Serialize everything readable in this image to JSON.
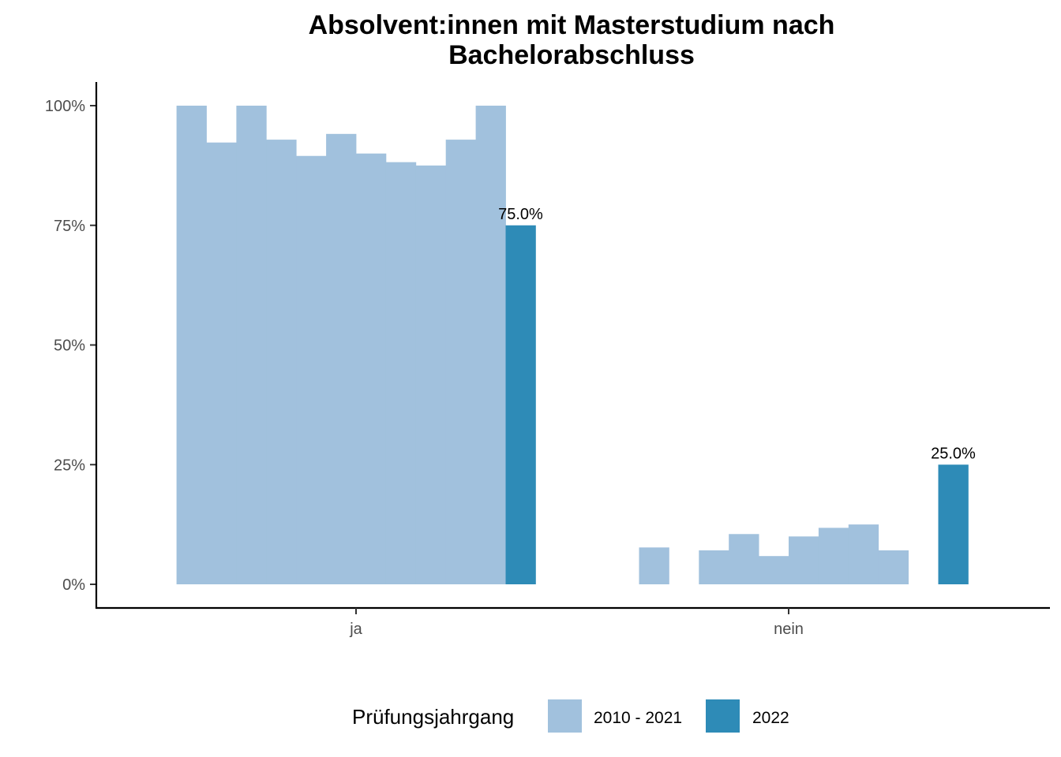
{
  "chart_data": {
    "type": "bar",
    "title_lines": [
      "Absolvent:innen mit Masterstudium nach",
      "Bachelorabschluss"
    ],
    "xlabel": "",
    "ylabel": "",
    "categories": [
      "ja",
      "nein"
    ],
    "ylim": [
      0,
      1
    ],
    "y_ticks": [
      0,
      0.25,
      0.5,
      0.75,
      1
    ],
    "y_tick_labels": [
      "0%",
      "25%",
      "50%",
      "75%",
      "100%"
    ],
    "grid": false,
    "legend": {
      "title": "Prüfungsjahrgang",
      "position": "bottom",
      "entries": [
        {
          "label": "2010 - 2021",
          "color": "#a1c1dd"
        },
        {
          "label": "2022",
          "color": "#2e8bb7"
        }
      ]
    },
    "series": [
      {
        "name": "2010 - 2021",
        "color": "#a1c1dd",
        "groups": [
          {
            "category": "ja",
            "values": [
              1.0,
              0.923,
              1.0,
              0.929,
              0.895,
              0.941,
              0.9,
              0.882,
              0.875,
              0.929,
              1.0
            ]
          },
          {
            "category": "nein",
            "values": [
              0.0,
              0.077,
              0.0,
              0.071,
              0.105,
              0.059,
              0.1,
              0.118,
              0.125,
              0.071,
              0.0
            ]
          }
        ]
      },
      {
        "name": "2022",
        "color": "#2e8bb7",
        "groups": [
          {
            "category": "ja",
            "values": [
              0.75
            ],
            "labels": [
              "75.0%"
            ]
          },
          {
            "category": "nein",
            "values": [
              0.25
            ],
            "labels": [
              "25.0%"
            ]
          }
        ]
      }
    ]
  }
}
